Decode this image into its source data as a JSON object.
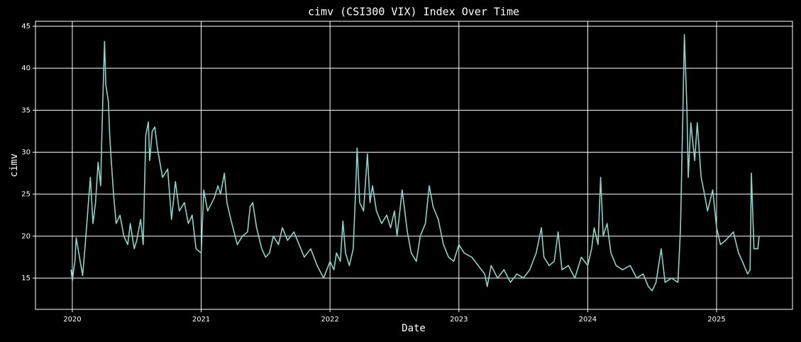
{
  "chart_data": {
    "type": "line",
    "title": "cimv (CSI300 VIX) Index Over Time",
    "x_label": "Date",
    "y_label": "cimv",
    "color": "#8dd3c7",
    "grid": true,
    "xlim": [
      2019.714,
      2025.589
    ],
    "ylim": [
      11.28,
      45.59
    ],
    "xticks": [
      2020,
      2021,
      2022,
      2023,
      2024,
      2025
    ],
    "yticks": [
      15,
      20,
      25,
      30,
      35,
      40,
      45
    ],
    "x": [
      2019.99,
      2020.0,
      2020.02,
      2020.03,
      2020.05,
      2020.08,
      2020.1,
      2020.12,
      2020.14,
      2020.16,
      2020.18,
      2020.2,
      2020.22,
      2020.23,
      2020.24,
      2020.25,
      2020.26,
      2020.28,
      2020.29,
      2020.3,
      2020.32,
      2020.34,
      2020.37,
      2020.4,
      2020.43,
      2020.45,
      2020.48,
      2020.5,
      2020.53,
      2020.55,
      2020.57,
      2020.59,
      2020.6,
      2020.62,
      2020.64,
      2020.66,
      2020.7,
      2020.74,
      2020.77,
      2020.8,
      2020.83,
      2020.87,
      2020.9,
      2020.93,
      2020.96,
      2021.0,
      2021.02,
      2021.05,
      2021.1,
      2021.13,
      2021.15,
      2021.18,
      2021.2,
      2021.23,
      2021.28,
      2021.32,
      2021.36,
      2021.38,
      2021.4,
      2021.43,
      2021.47,
      2021.5,
      2021.53,
      2021.56,
      2021.6,
      2021.63,
      2021.67,
      2021.72,
      2021.76,
      2021.8,
      2021.85,
      2021.9,
      2021.95,
      2022.0,
      2022.03,
      2022.05,
      2022.08,
      2022.1,
      2022.12,
      2022.15,
      2022.18,
      2022.2,
      2022.21,
      2022.23,
      2022.26,
      2022.29,
      2022.31,
      2022.33,
      2022.36,
      2022.4,
      2022.44,
      2022.47,
      2022.5,
      2022.52,
      2022.56,
      2022.6,
      2022.63,
      2022.67,
      2022.7,
      2022.74,
      2022.77,
      2022.8,
      2022.84,
      2022.88,
      2022.92,
      2022.96,
      2023.0,
      2023.04,
      2023.1,
      2023.15,
      2023.2,
      2023.22,
      2023.25,
      2023.3,
      2023.35,
      2023.4,
      2023.45,
      2023.5,
      2023.55,
      2023.6,
      2023.64,
      2023.66,
      2023.7,
      2023.74,
      2023.77,
      2023.8,
      2023.85,
      2023.9,
      2023.95,
      2024.0,
      2024.03,
      2024.05,
      2024.08,
      2024.1,
      2024.12,
      2024.15,
      2024.18,
      2024.22,
      2024.27,
      2024.33,
      2024.38,
      2024.43,
      2024.47,
      2024.5,
      2024.53,
      2024.57,
      2024.6,
      2024.65,
      2024.7,
      2024.72,
      2024.74,
      2024.75,
      2024.77,
      2024.78,
      2024.8,
      2024.83,
      2024.85,
      2024.88,
      2024.9,
      2024.93,
      2024.97,
      2025.0,
      2025.03,
      2025.07,
      2025.1,
      2025.13,
      2025.17,
      2025.2,
      2025.24,
      2025.26,
      2025.27,
      2025.29,
      2025.32,
      2025.33
    ],
    "values": [
      16,
      14.7,
      17,
      19.8,
      18,
      15.3,
      19,
      23,
      27,
      21.5,
      24,
      28.8,
      26,
      32.5,
      38,
      43.2,
      38,
      36,
      32,
      29.5,
      25,
      21.5,
      22.5,
      20,
      19,
      21.5,
      18.5,
      19.5,
      22,
      19,
      32,
      33.6,
      29,
      32.5,
      33,
      30.5,
      27,
      28,
      22,
      26.5,
      23,
      24,
      21.5,
      22.5,
      18.5,
      18,
      25.5,
      23,
      24.5,
      26,
      25,
      27.5,
      24,
      22,
      19,
      20,
      20.5,
      23.5,
      24,
      21,
      18.5,
      17.5,
      18,
      20,
      19,
      21,
      19.5,
      20.5,
      19,
      17.5,
      18.5,
      16.5,
      15,
      17,
      16,
      18,
      17,
      21.8,
      18,
      16.5,
      18.5,
      26,
      30.5,
      24,
      23,
      29.8,
      24,
      26,
      23,
      21.5,
      22.5,
      21,
      23,
      20,
      25.5,
      20.5,
      18,
      17,
      20,
      21.5,
      26,
      23.5,
      22,
      19,
      17.5,
      17,
      19,
      18,
      17.5,
      16.5,
      15.5,
      14,
      16.5,
      15,
      16,
      14.5,
      15.5,
      15,
      16,
      18,
      21,
      17.5,
      16.5,
      17,
      20.5,
      16,
      16.5,
      15,
      17.5,
      16.5,
      18.5,
      21,
      19,
      27,
      20,
      21.5,
      18,
      16.5,
      16,
      16.5,
      15,
      15.5,
      14,
      13.5,
      14.5,
      18.5,
      14.5,
      15,
      14.5,
      21,
      36,
      44,
      35,
      27,
      33.5,
      29,
      33.5,
      27,
      25.5,
      23,
      25.5,
      21,
      19,
      19.5,
      20,
      20.5,
      18,
      17,
      15.5,
      16,
      27.5,
      18.5,
      18.5,
      20
    ]
  }
}
